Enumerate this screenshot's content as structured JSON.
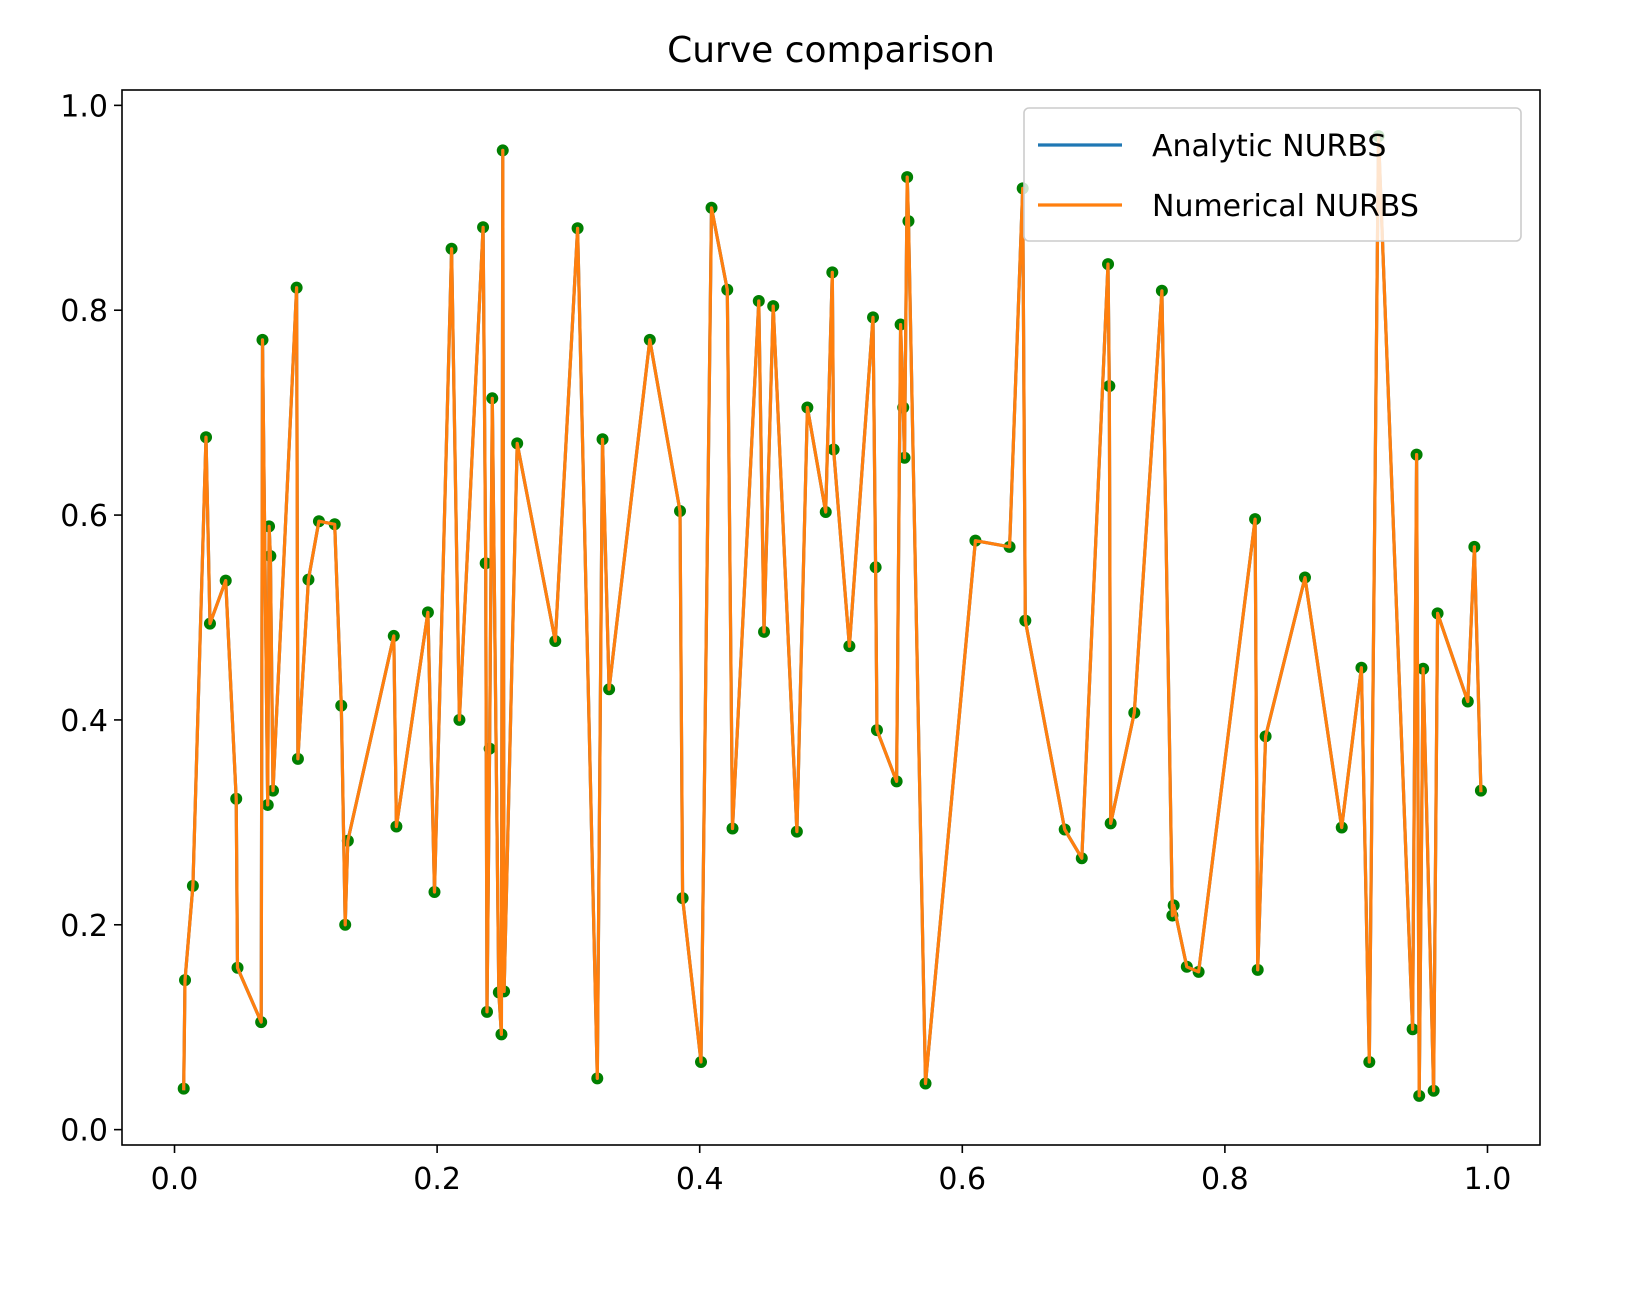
{
  "chart_data": {
    "type": "line",
    "title": "Curve comparison",
    "xlabel": "",
    "ylabel": "",
    "xlim": [
      -0.04,
      1.04
    ],
    "ylim": [
      -0.015,
      1.015
    ],
    "xticks": [
      0.0,
      0.2,
      0.4,
      0.6,
      0.8,
      1.0
    ],
    "xtick_labels": [
      "0.0",
      "0.2",
      "0.4",
      "0.6",
      "0.8",
      "1.0"
    ],
    "yticks": [
      0.0,
      0.2,
      0.4,
      0.6,
      0.8,
      1.0
    ],
    "ytick_labels": [
      "0.0",
      "0.2",
      "0.4",
      "0.6",
      "0.8",
      "1.0"
    ],
    "grid": false,
    "legend_position": "top-right",
    "series": [
      {
        "name": "Analytic NURBS",
        "color": "#1f77b4",
        "x": [
          0.007,
          0.008,
          0.014,
          0.024,
          0.027,
          0.039,
          0.047,
          0.048,
          0.066,
          0.067,
          0.071,
          0.072,
          0.073,
          0.075,
          0.093,
          0.094,
          0.102,
          0.11,
          0.122,
          0.127,
          0.13,
          0.132,
          0.167,
          0.169,
          0.193,
          0.198,
          0.211,
          0.217,
          0.235,
          0.237,
          0.238,
          0.24,
          0.242,
          0.247,
          0.249,
          0.25,
          0.251,
          0.261,
          0.29,
          0.307,
          0.322,
          0.326,
          0.331,
          0.362,
          0.385,
          0.387,
          0.401,
          0.409,
          0.421,
          0.425,
          0.445,
          0.449,
          0.456,
          0.474,
          0.482,
          0.496,
          0.501,
          0.502,
          0.514,
          0.532,
          0.534,
          0.535,
          0.55,
          0.553,
          0.555,
          0.556,
          0.558,
          0.559,
          0.572,
          0.61,
          0.636,
          0.646,
          0.648,
          0.678,
          0.691,
          0.711,
          0.712,
          0.713,
          0.731,
          0.752,
          0.76,
          0.761,
          0.771,
          0.78,
          0.823,
          0.825,
          0.831,
          0.861,
          0.889,
          0.904,
          0.91,
          0.917,
          0.943,
          0.946,
          0.948,
          0.951,
          0.959,
          0.962,
          0.985,
          0.99,
          0.995
        ],
        "y": [
          0.04,
          0.146,
          0.238,
          0.676,
          0.494,
          0.536,
          0.323,
          0.158,
          0.105,
          0.771,
          0.317,
          0.589,
          0.56,
          0.331,
          0.822,
          0.362,
          0.537,
          0.594,
          0.591,
          0.414,
          0.2,
          0.282,
          0.482,
          0.296,
          0.505,
          0.232,
          0.86,
          0.4,
          0.881,
          0.553,
          0.115,
          0.372,
          0.714,
          0.134,
          0.093,
          0.956,
          0.135,
          0.67,
          0.477,
          0.88,
          0.05,
          0.674,
          0.43,
          0.771,
          0.604,
          0.226,
          0.066,
          0.9,
          0.82,
          0.294,
          0.809,
          0.486,
          0.804,
          0.291,
          0.705,
          0.603,
          0.837,
          0.664,
          0.472,
          0.793,
          0.549,
          0.39,
          0.34,
          0.786,
          0.705,
          0.656,
          0.93,
          0.887,
          0.045,
          0.575,
          0.569,
          0.919,
          0.497,
          0.293,
          0.265,
          0.845,
          0.726,
          0.299,
          0.407,
          0.819,
          0.209,
          0.219,
          0.159,
          0.154,
          0.596,
          0.156,
          0.384,
          0.539,
          0.295,
          0.451,
          0.066,
          0.97,
          0.098,
          0.659,
          0.033,
          0.45,
          0.038,
          0.504,
          0.418,
          0.569,
          0.331
        ]
      },
      {
        "name": "Numerical NURBS",
        "color": "#ff7f0e",
        "same_as": "Analytic NURBS"
      }
    ],
    "points": {
      "color": "#007f00",
      "note": ""
    }
  }
}
